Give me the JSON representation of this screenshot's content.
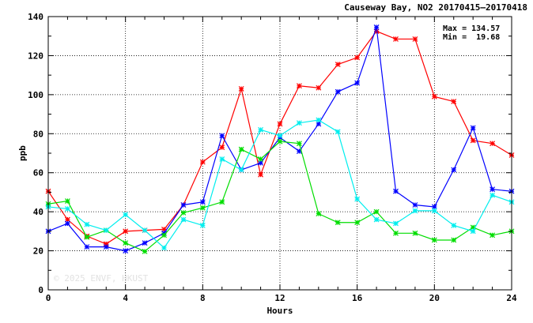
{
  "chart_data": {
    "type": "line",
    "title": "Causeway Bay, NO2 20170415—20170418",
    "xlabel": "Hours",
    "ylabel": "ppb",
    "xlim": [
      0,
      24
    ],
    "ylim": [
      0,
      140
    ],
    "xticks": [
      0,
      4,
      8,
      12,
      16,
      20,
      24
    ],
    "yticks": [
      0,
      20,
      40,
      60,
      80,
      100,
      120,
      140
    ],
    "grid": true,
    "stats": {
      "max_label": "Max = 134.57",
      "min_label": "Min =  19.68"
    },
    "watermark": "© 2025  ENVF, HKUST",
    "x": [
      0,
      1,
      2,
      3,
      4,
      5,
      6,
      7,
      8,
      9,
      10,
      11,
      12,
      13,
      14,
      15,
      16,
      17,
      18,
      19,
      20,
      21,
      22,
      23,
      24
    ],
    "series": [
      {
        "color": "#ff0000",
        "values": [
          50.5,
          36,
          27.5,
          23.5,
          30,
          30.5,
          31,
          43.5,
          65.5,
          73,
          103,
          59,
          85,
          104.5,
          103.5,
          115.5,
          119,
          132.5,
          128.5,
          128.5,
          99,
          96.5,
          76.5,
          75,
          69
        ]
      },
      {
        "color": "#0000ff",
        "values": [
          30,
          34,
          22,
          22,
          20,
          24,
          29,
          43.5,
          45,
          79,
          61.5,
          65,
          78,
          71,
          85,
          101.5,
          106,
          134.57,
          50.5,
          43.5,
          42.5,
          61.5,
          83,
          51.5,
          50.5
        ]
      },
      {
        "color": "#00dd00",
        "values": [
          44,
          45.5,
          27,
          30.5,
          24,
          19.68,
          28,
          39.5,
          42,
          45,
          72,
          67,
          76,
          75,
          39,
          34.5,
          34.5,
          40,
          29,
          29,
          25.5,
          25.5,
          32,
          28,
          30
        ]
      },
      {
        "color": "#00eeee",
        "values": [
          42.5,
          41.5,
          33.5,
          30.5,
          38.5,
          30.5,
          21.5,
          36,
          33,
          67,
          61.5,
          82,
          79,
          85.5,
          87,
          81,
          46.5,
          36,
          34,
          40.5,
          40.5,
          33,
          30,
          48.5,
          45
        ]
      }
    ]
  }
}
